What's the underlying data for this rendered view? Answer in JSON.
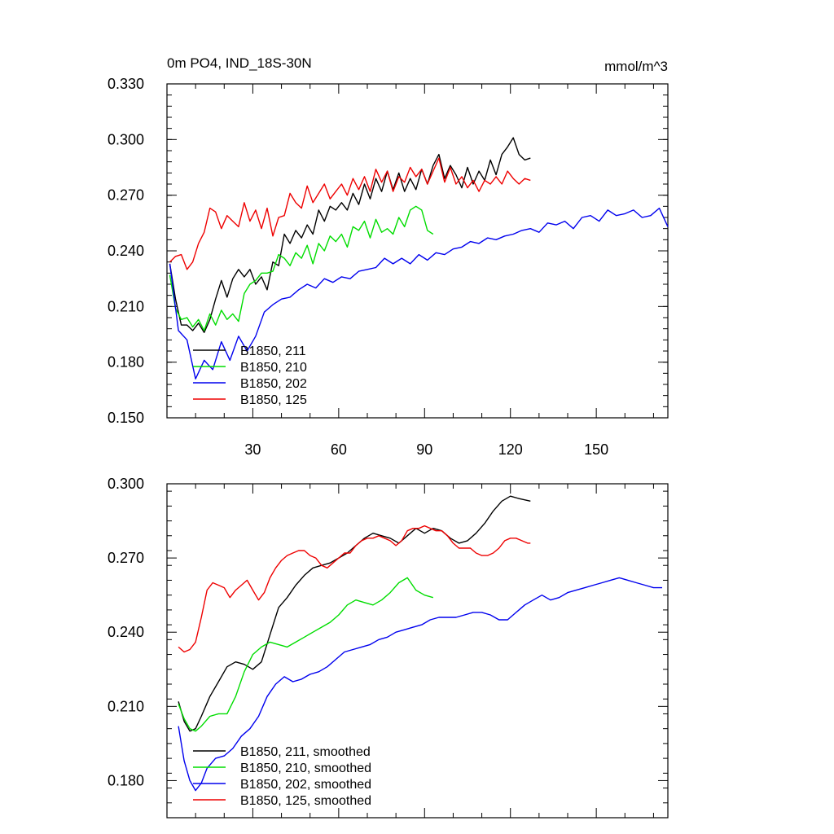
{
  "chart_data": [
    {
      "type": "line",
      "title_left": "0m PO4, IND_18S-30N",
      "title_right": "mmol/m^3",
      "xlabel": "",
      "ylabel": "",
      "xlim": [
        0,
        175
      ],
      "ylim": [
        0.15,
        0.33
      ],
      "xticks": [
        30,
        60,
        90,
        120,
        150
      ],
      "xtick_labels": [
        "30",
        "60",
        "90",
        "120",
        "150"
      ],
      "yticks": [
        0.15,
        0.18,
        0.21,
        0.24,
        0.27,
        0.3,
        0.33
      ],
      "ytick_labels": [
        "0.150",
        "0.180",
        "0.210",
        "0.240",
        "0.270",
        "0.300",
        "0.330"
      ],
      "legend_position": "bottom-left",
      "series": [
        {
          "name": "B1850, 211",
          "color": "#000000",
          "x": [
            1,
            3,
            5,
            7,
            9,
            11,
            13,
            15,
            17,
            19,
            21,
            23,
            25,
            27,
            29,
            31,
            33,
            35,
            37,
            39,
            41,
            43,
            45,
            47,
            49,
            51,
            53,
            55,
            57,
            59,
            61,
            63,
            65,
            67,
            69,
            71,
            73,
            75,
            77,
            79,
            81,
            83,
            85,
            87,
            89,
            91,
            93,
            95,
            97,
            99,
            101,
            103,
            105,
            107,
            109,
            111,
            113,
            115,
            117,
            119,
            121,
            123,
            125,
            127
          ],
          "y": [
            0.233,
            0.214,
            0.2,
            0.2,
            0.197,
            0.201,
            0.196,
            0.203,
            0.214,
            0.224,
            0.215,
            0.225,
            0.23,
            0.226,
            0.23,
            0.222,
            0.226,
            0.219,
            0.234,
            0.232,
            0.249,
            0.244,
            0.251,
            0.247,
            0.254,
            0.249,
            0.262,
            0.256,
            0.264,
            0.262,
            0.266,
            0.262,
            0.271,
            0.265,
            0.276,
            0.268,
            0.279,
            0.272,
            0.283,
            0.273,
            0.282,
            0.272,
            0.279,
            0.273,
            0.284,
            0.276,
            0.286,
            0.292,
            0.279,
            0.286,
            0.281,
            0.274,
            0.285,
            0.276,
            0.283,
            0.278,
            0.289,
            0.281,
            0.292,
            0.296,
            0.301,
            0.292,
            0.289,
            0.29
          ]
        },
        {
          "name": "B1850, 210",
          "color": "#00dd00",
          "x": [
            1,
            3,
            5,
            7,
            9,
            11,
            13,
            15,
            17,
            19,
            21,
            23,
            25,
            27,
            29,
            31,
            33,
            35,
            37,
            39,
            41,
            43,
            45,
            47,
            49,
            51,
            53,
            55,
            57,
            59,
            61,
            63,
            65,
            67,
            69,
            71,
            73,
            75,
            77,
            79,
            81,
            83,
            85,
            87,
            89,
            91,
            93
          ],
          "y": [
            0.227,
            0.209,
            0.203,
            0.204,
            0.199,
            0.203,
            0.197,
            0.206,
            0.2,
            0.208,
            0.203,
            0.206,
            0.202,
            0.217,
            0.222,
            0.224,
            0.228,
            0.228,
            0.229,
            0.238,
            0.236,
            0.232,
            0.239,
            0.236,
            0.243,
            0.233,
            0.244,
            0.24,
            0.248,
            0.245,
            0.249,
            0.242,
            0.253,
            0.251,
            0.256,
            0.247,
            0.257,
            0.25,
            0.252,
            0.249,
            0.258,
            0.253,
            0.262,
            0.264,
            0.262,
            0.251,
            0.249
          ]
        },
        {
          "name": "B1850, 202",
          "color": "#0000ee",
          "x": [
            1,
            4,
            7,
            10,
            13,
            16,
            19,
            22,
            25,
            28,
            31,
            34,
            37,
            40,
            43,
            46,
            49,
            52,
            55,
            58,
            61,
            64,
            67,
            70,
            73,
            76,
            79,
            82,
            85,
            88,
            91,
            94,
            97,
            100,
            103,
            106,
            109,
            112,
            115,
            118,
            121,
            124,
            127,
            130,
            133,
            136,
            139,
            142,
            145,
            148,
            151,
            154,
            157,
            160,
            163,
            166,
            169,
            172,
            175
          ],
          "y": [
            0.233,
            0.197,
            0.192,
            0.171,
            0.181,
            0.176,
            0.191,
            0.181,
            0.194,
            0.186,
            0.194,
            0.207,
            0.211,
            0.214,
            0.215,
            0.219,
            0.222,
            0.22,
            0.225,
            0.223,
            0.226,
            0.225,
            0.229,
            0.23,
            0.231,
            0.236,
            0.233,
            0.236,
            0.233,
            0.238,
            0.235,
            0.239,
            0.238,
            0.241,
            0.242,
            0.245,
            0.244,
            0.247,
            0.246,
            0.248,
            0.249,
            0.251,
            0.252,
            0.25,
            0.255,
            0.254,
            0.256,
            0.252,
            0.258,
            0.259,
            0.256,
            0.262,
            0.259,
            0.26,
            0.262,
            0.258,
            0.259,
            0.263,
            0.253
          ]
        },
        {
          "name": "B1850, 125",
          "color": "#ee0000",
          "x": [
            1,
            3,
            5,
            7,
            9,
            11,
            13,
            15,
            17,
            19,
            21,
            23,
            25,
            27,
            29,
            31,
            33,
            35,
            37,
            39,
            41,
            43,
            45,
            47,
            49,
            51,
            53,
            55,
            57,
            59,
            61,
            63,
            65,
            67,
            69,
            71,
            73,
            75,
            77,
            79,
            81,
            83,
            85,
            87,
            89,
            91,
            93,
            95,
            97,
            99,
            101,
            103,
            105,
            107,
            109,
            111,
            113,
            115,
            117,
            119,
            121,
            123,
            125,
            127
          ],
          "y": [
            0.234,
            0.237,
            0.238,
            0.23,
            0.234,
            0.244,
            0.25,
            0.263,
            0.261,
            0.252,
            0.259,
            0.256,
            0.253,
            0.266,
            0.256,
            0.262,
            0.252,
            0.263,
            0.248,
            0.258,
            0.259,
            0.271,
            0.266,
            0.263,
            0.275,
            0.266,
            0.271,
            0.276,
            0.268,
            0.272,
            0.276,
            0.27,
            0.279,
            0.273,
            0.28,
            0.272,
            0.284,
            0.277,
            0.283,
            0.272,
            0.28,
            0.277,
            0.285,
            0.28,
            0.284,
            0.276,
            0.283,
            0.29,
            0.277,
            0.285,
            0.276,
            0.28,
            0.274,
            0.278,
            0.272,
            0.278,
            0.276,
            0.28,
            0.276,
            0.283,
            0.279,
            0.276,
            0.279,
            0.278
          ]
        }
      ]
    },
    {
      "type": "line",
      "xlabel": "",
      "ylabel": "",
      "xlim": [
        0,
        175
      ],
      "ylim": [
        0.165,
        0.3
      ],
      "xticks": [
        30,
        60,
        90,
        120,
        150
      ],
      "yticks": [
        0.18,
        0.21,
        0.24,
        0.27,
        0.3
      ],
      "ytick_labels": [
        "0.180",
        "0.210",
        "0.240",
        "0.270",
        "0.300"
      ],
      "legend_position": "bottom-left",
      "series": [
        {
          "name": "B1850, 211, smoothed",
          "color": "#000000",
          "x": [
            4,
            6,
            8,
            10,
            12,
            15,
            18,
            21,
            24,
            27,
            30,
            33,
            36,
            39,
            42,
            45,
            48,
            51,
            54,
            57,
            60,
            63,
            66,
            69,
            72,
            75,
            78,
            81,
            84,
            87,
            90,
            93,
            96,
            99,
            102,
            105,
            108,
            111,
            114,
            117,
            120,
            123,
            127
          ],
          "y": [
            0.212,
            0.204,
            0.2,
            0.201,
            0.206,
            0.214,
            0.22,
            0.226,
            0.228,
            0.227,
            0.225,
            0.228,
            0.239,
            0.25,
            0.254,
            0.259,
            0.263,
            0.266,
            0.267,
            0.268,
            0.27,
            0.272,
            0.275,
            0.278,
            0.28,
            0.279,
            0.278,
            0.276,
            0.279,
            0.282,
            0.28,
            0.282,
            0.281,
            0.278,
            0.276,
            0.277,
            0.28,
            0.284,
            0.289,
            0.293,
            0.295,
            0.294,
            0.293
          ]
        },
        {
          "name": "B1850, 210, smoothed",
          "color": "#00dd00",
          "x": [
            4,
            6,
            8,
            10,
            12,
            15,
            18,
            21,
            24,
            27,
            30,
            33,
            36,
            39,
            42,
            45,
            48,
            51,
            54,
            57,
            60,
            63,
            66,
            69,
            72,
            75,
            78,
            81,
            84,
            87,
            90,
            93
          ],
          "y": [
            0.211,
            0.205,
            0.201,
            0.2,
            0.202,
            0.206,
            0.207,
            0.207,
            0.214,
            0.224,
            0.231,
            0.234,
            0.236,
            0.235,
            0.234,
            0.236,
            0.238,
            0.24,
            0.242,
            0.244,
            0.247,
            0.251,
            0.253,
            0.252,
            0.251,
            0.253,
            0.256,
            0.26,
            0.262,
            0.257,
            0.255,
            0.254
          ]
        },
        {
          "name": "B1850, 202, smoothed",
          "color": "#0000ee",
          "x": [
            4,
            6,
            8,
            10,
            12,
            14,
            17,
            20,
            23,
            26,
            29,
            32,
            35,
            38,
            41,
            44,
            47,
            50,
            53,
            56,
            59,
            62,
            65,
            68,
            71,
            74,
            77,
            80,
            83,
            86,
            89,
            92,
            95,
            98,
            101,
            104,
            107,
            110,
            113,
            116,
            119,
            122,
            125,
            128,
            131,
            134,
            137,
            140,
            143,
            146,
            149,
            152,
            155,
            158,
            161,
            164,
            167,
            170,
            173
          ],
          "y": [
            0.202,
            0.188,
            0.18,
            0.176,
            0.179,
            0.185,
            0.189,
            0.19,
            0.193,
            0.198,
            0.201,
            0.206,
            0.214,
            0.219,
            0.222,
            0.22,
            0.221,
            0.223,
            0.224,
            0.226,
            0.229,
            0.232,
            0.233,
            0.234,
            0.235,
            0.237,
            0.238,
            0.24,
            0.241,
            0.242,
            0.243,
            0.245,
            0.246,
            0.246,
            0.246,
            0.247,
            0.248,
            0.248,
            0.247,
            0.245,
            0.245,
            0.248,
            0.251,
            0.253,
            0.255,
            0.253,
            0.254,
            0.256,
            0.257,
            0.258,
            0.259,
            0.26,
            0.261,
            0.262,
            0.261,
            0.26,
            0.259,
            0.258,
            0.258
          ]
        },
        {
          "name": "B1850, 125, smoothed",
          "color": "#ee0000",
          "x": [
            4,
            6,
            8,
            10,
            12,
            14,
            16,
            18,
            20,
            22,
            24,
            26,
            28,
            30,
            32,
            34,
            36,
            38,
            40,
            42,
            44,
            46,
            48,
            50,
            52,
            54,
            56,
            58,
            60,
            62,
            64,
            66,
            68,
            70,
            72,
            74,
            76,
            78,
            80,
            82,
            84,
            86,
            88,
            90,
            92,
            94,
            96,
            98,
            100,
            102,
            104,
            106,
            108,
            110,
            112,
            114,
            116,
            118,
            120,
            122,
            124,
            126,
            127
          ],
          "y": [
            0.234,
            0.232,
            0.233,
            0.236,
            0.246,
            0.257,
            0.26,
            0.259,
            0.258,
            0.254,
            0.257,
            0.259,
            0.261,
            0.257,
            0.253,
            0.256,
            0.262,
            0.266,
            0.269,
            0.271,
            0.272,
            0.273,
            0.273,
            0.271,
            0.27,
            0.267,
            0.266,
            0.268,
            0.27,
            0.272,
            0.272,
            0.275,
            0.277,
            0.278,
            0.278,
            0.279,
            0.278,
            0.277,
            0.275,
            0.277,
            0.281,
            0.282,
            0.282,
            0.283,
            0.282,
            0.281,
            0.281,
            0.279,
            0.276,
            0.274,
            0.274,
            0.274,
            0.272,
            0.271,
            0.271,
            0.272,
            0.274,
            0.277,
            0.278,
            0.278,
            0.277,
            0.276,
            0.276
          ]
        }
      ]
    }
  ]
}
